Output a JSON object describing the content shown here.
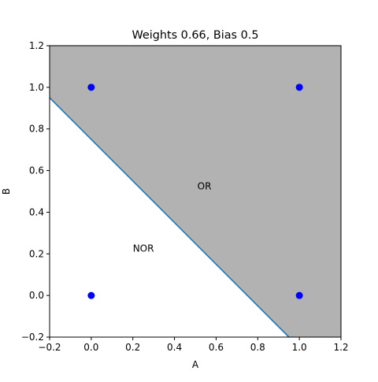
{
  "chart_data": {
    "type": "scatter",
    "title": "Weights 0.66, Bias 0.5",
    "xlabel": "A",
    "ylabel": "B",
    "xlim": [
      -0.2,
      1.2
    ],
    "ylim": [
      -0.2,
      1.2
    ],
    "xticks": [
      -0.2,
      0.0,
      0.2,
      0.4,
      0.6,
      0.8,
      1.0,
      1.2
    ],
    "xtick_labels": [
      "−0.2",
      "0.0",
      "0.2",
      "0.4",
      "0.6",
      "0.8",
      "1.0",
      "1.2"
    ],
    "yticks": [
      -0.2,
      0.0,
      0.2,
      0.4,
      0.6,
      0.8,
      1.0,
      1.2
    ],
    "ytick_labels": [
      "−0.2",
      "0.0",
      "0.2",
      "0.4",
      "0.6",
      "0.8",
      "1.0",
      "1.2"
    ],
    "points": [
      {
        "x": 0,
        "y": 0
      },
      {
        "x": 0,
        "y": 1
      },
      {
        "x": 1,
        "y": 0
      },
      {
        "x": 1,
        "y": 1
      }
    ],
    "point_color": "#0000ff",
    "boundary_line": {
      "x": [
        -0.2,
        0.95
      ],
      "y": [
        0.95,
        -0.2
      ]
    },
    "line_color": "#1f77b4",
    "region_fill": "#b2b2b2",
    "annotations": [
      {
        "text": "OR",
        "x": 0.51,
        "y": 0.51
      },
      {
        "text": "NOR",
        "x": 0.2,
        "y": 0.21
      }
    ],
    "grid": false,
    "legend": "none"
  }
}
